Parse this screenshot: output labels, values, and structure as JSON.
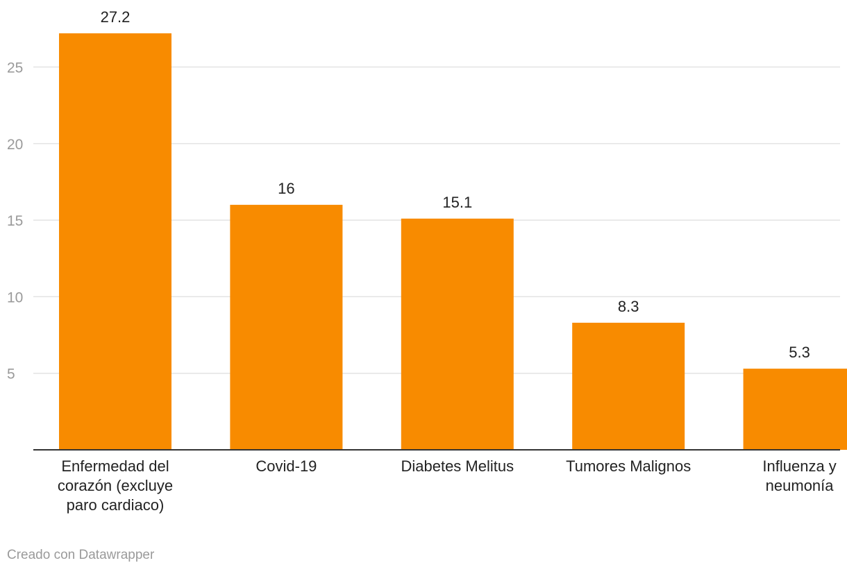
{
  "chart_data": {
    "type": "bar",
    "categories": [
      [
        "Enfermedad del",
        "corazón (excluye",
        "paro cardiaco)"
      ],
      [
        "Covid-19"
      ],
      [
        "Diabetes Melitus"
      ],
      [
        "Tumores Malignos"
      ],
      [
        "Influenza y",
        "neumonía"
      ]
    ],
    "values": [
      27.2,
      16,
      15.1,
      8.3,
      5.3
    ],
    "value_labels": [
      "27.2",
      "16",
      "15.1",
      "8.3",
      "5.3"
    ],
    "y_ticks": [
      5,
      10,
      15,
      20,
      25
    ],
    "ylim": [
      0,
      27.2
    ],
    "grid": true,
    "bar_color": "#f88b00"
  },
  "footer": {
    "credit": "Creado con Datawrapper"
  }
}
